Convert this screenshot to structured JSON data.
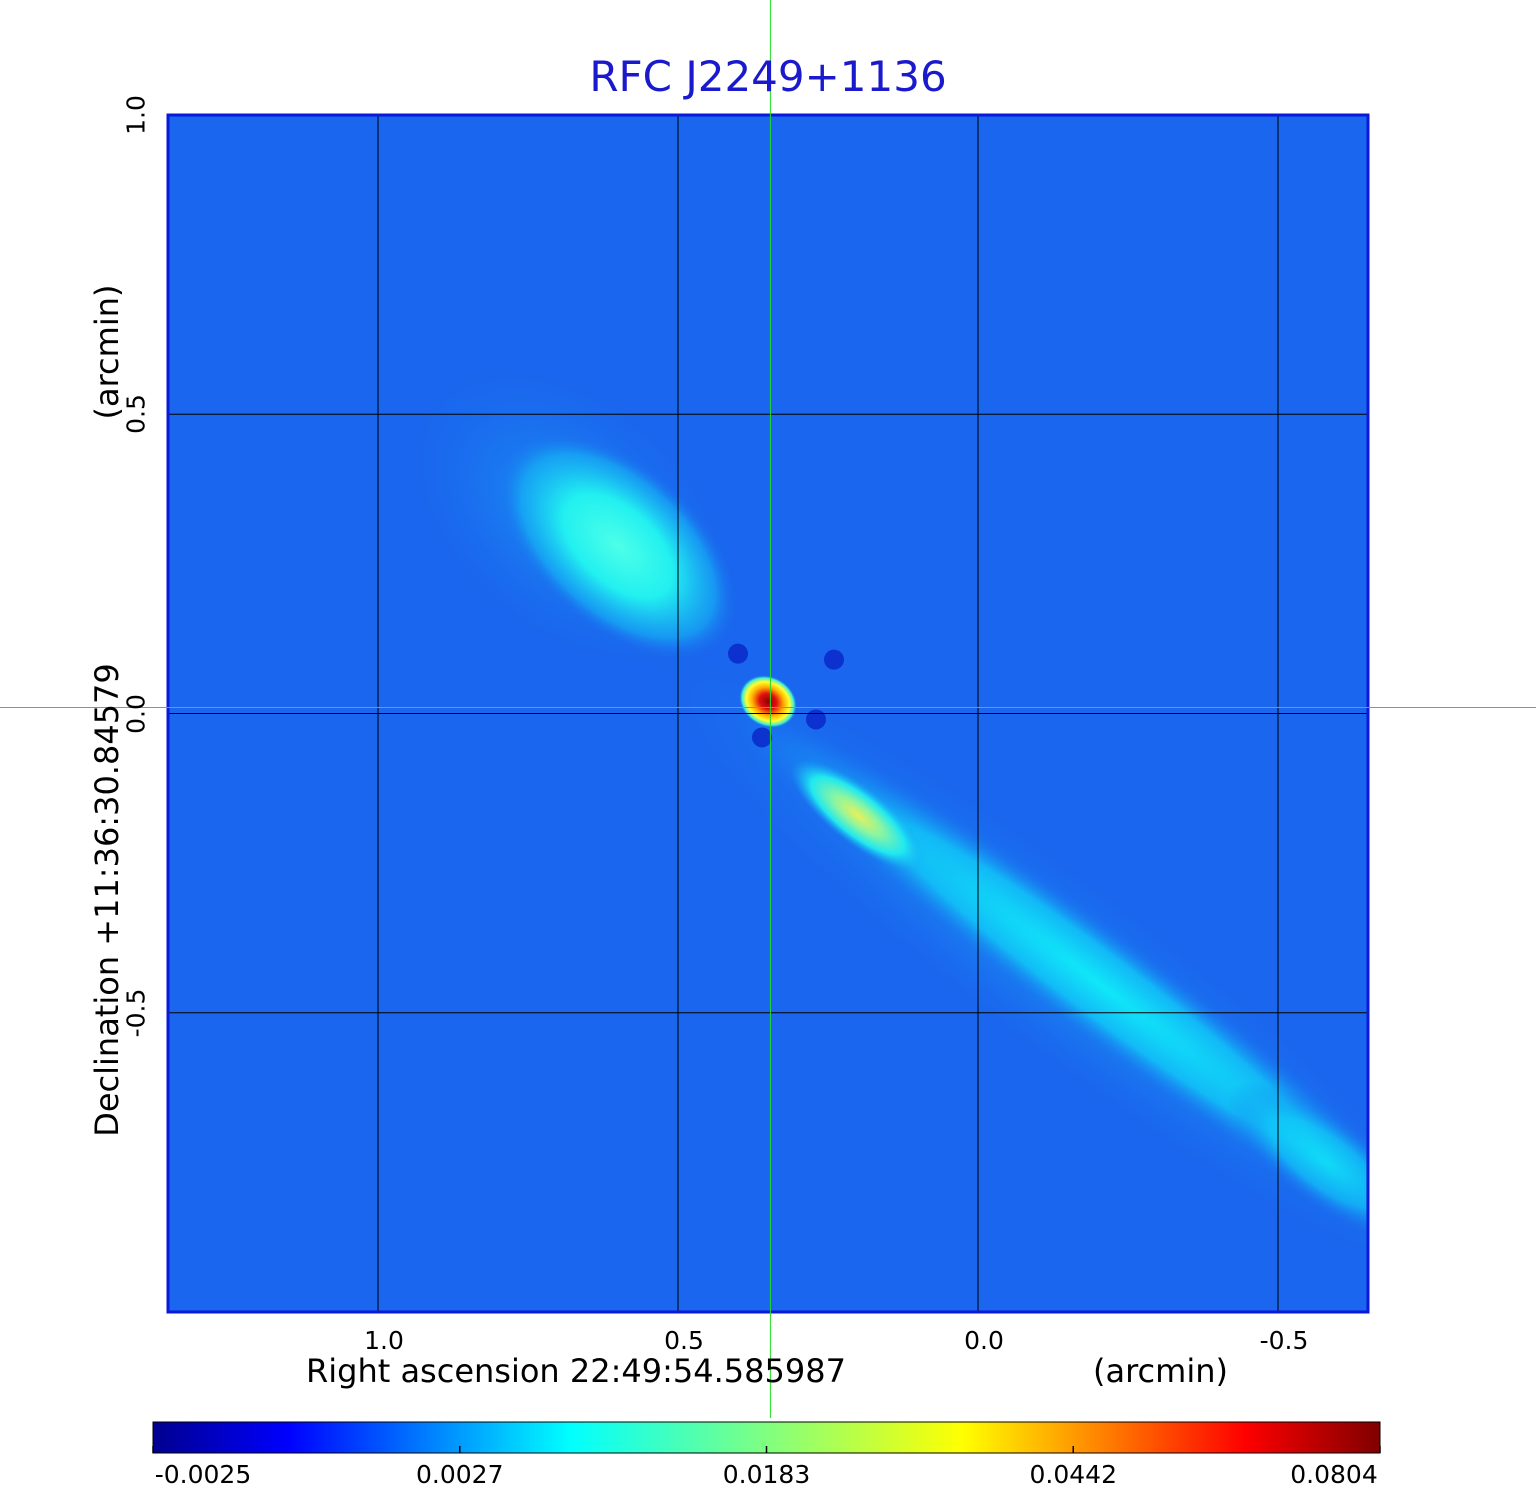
{
  "chart_data": {
    "type": "heatmap",
    "title": "RFC J2249+1136",
    "xlabel": "Right ascension  22:49:54.585987",
    "xlabel_unit": "(arcmin)",
    "ylabel": "Declination  +11:36:30.84579",
    "ylabel_unit": "(arcmin)",
    "xlim": [
      1.35,
      -0.65
    ],
    "ylim": [
      -1.0,
      1.0
    ],
    "x_ticks": [
      "1.0",
      "0.5",
      "0.0",
      "-0.5"
    ],
    "y_ticks": [
      "-0.5",
      "0.0",
      "0.5",
      "1.0"
    ],
    "grid": true,
    "crosshair": {
      "x": 0.346,
      "y": 0.01,
      "color": "#22dd22"
    },
    "colormap": "jet",
    "colorbar": {
      "orientation": "horizontal",
      "placement": "bottom",
      "ticks": [
        "-0.0025",
        "0.0027",
        "0.0183",
        "0.0442",
        "0.0804"
      ],
      "range": [
        -0.0025,
        0.0804
      ]
    },
    "components": [
      {
        "name": "core",
        "x": 0.35,
        "y": 0.02,
        "peak": 0.0804
      },
      {
        "name": "northeast lobe",
        "x": 0.6,
        "y": 0.28,
        "peak": 0.011
      },
      {
        "name": "southwest jet knot",
        "x": 0.2,
        "y": -0.17,
        "peak": 0.03
      },
      {
        "name": "southwest jet",
        "x": -0.3,
        "y": -0.55,
        "peak": 0.006
      }
    ]
  }
}
